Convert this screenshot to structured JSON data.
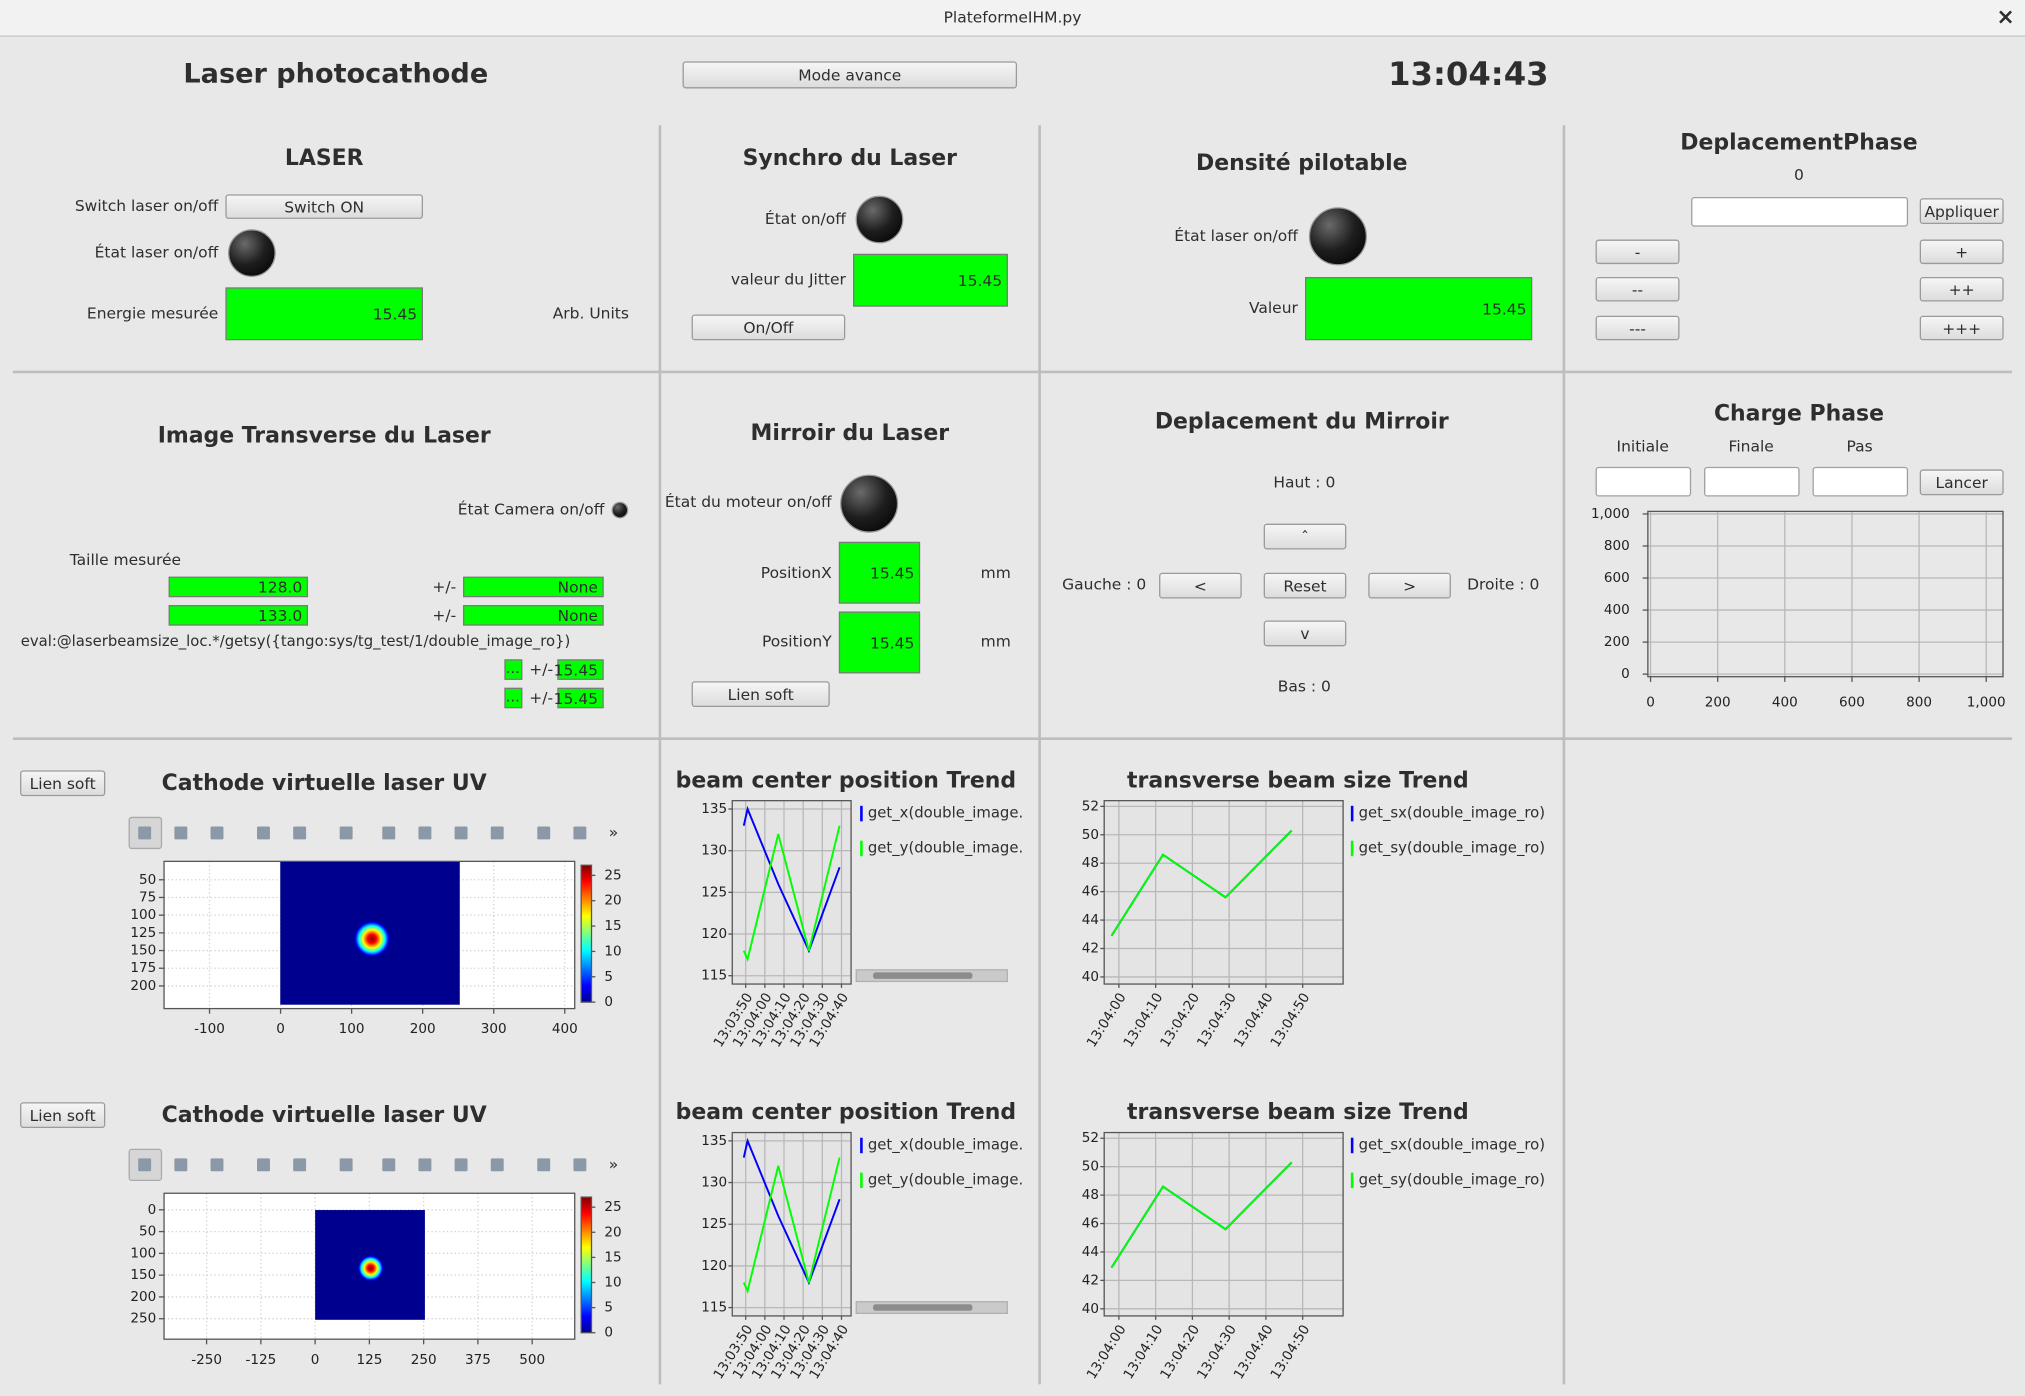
{
  "window": {
    "title": "PlateformeIHM.py",
    "close": "×"
  },
  "header": {
    "title": "Laser photocathode",
    "mode_button": "Mode avance",
    "clock": "13:04:43"
  },
  "laser": {
    "title": "LASER",
    "switch_label": "Switch laser on/off",
    "switch_button": "Switch ON",
    "state_label": "État laser on/off",
    "energy_label": "Energie mesurée",
    "energy_value": "15.45",
    "units": "Arb. Units"
  },
  "synchro": {
    "title": "Synchro  du Laser",
    "state_label": "État on/off",
    "jitter_label": "valeur du Jitter",
    "jitter_value": "15.45",
    "button": "On/Off"
  },
  "density": {
    "title": "Densité pilotable",
    "state_label": "État laser on/off",
    "value_label": "Valeur",
    "value": "15.45"
  },
  "phase": {
    "title": "DeplacementPhase",
    "value": "0",
    "apply": "Appliquer",
    "buttons": [
      "-",
      "+",
      "--",
      "++",
      "---",
      "+++"
    ]
  },
  "image": {
    "title": "Image Transverse du Laser",
    "camera_label": "État Camera on/off",
    "size_label": "Taille mesurée",
    "rows": [
      [
        "128.0",
        "+/-",
        "None"
      ],
      [
        "133.0",
        "+/-",
        "None"
      ]
    ],
    "eval": "eval:@laserbeamsize_loc.*/getsy({tango:sys/tg_test/1/double_image_ro})",
    "small": [
      [
        "...",
        "+/-",
        "15.45"
      ],
      [
        "...",
        "+/-",
        "15.45"
      ]
    ]
  },
  "mirror": {
    "title": "Mirroir du Laser",
    "motor_label": "État du moteur on/off",
    "x_label": "PositionX",
    "x_value": "15.45",
    "y_label": "PositionY",
    "y_value": "15.45",
    "unit": "mm",
    "button": "Lien soft"
  },
  "mirror_move": {
    "title": "Deplacement du Mirroir",
    "up_label": "Haut : 0",
    "up": "ˆ",
    "left_label": "Gauche : 0",
    "left": "<",
    "reset": "Reset",
    "right": ">",
    "right_label": "Droite : 0",
    "down": "v",
    "down_label": "Bas : 0"
  },
  "charge": {
    "title": "Charge Phase",
    "fields": [
      "Initiale",
      "Finale",
      "Pas"
    ],
    "button": "Lancer",
    "chart": {
      "type": "line",
      "xlim": [
        -8,
        1050
      ],
      "ylim": [
        -16,
        1016
      ],
      "grid": true,
      "xticks": [
        0,
        200,
        400,
        600,
        800,
        {
          "value": 1000,
          "label": "1,000"
        }
      ],
      "yticks": [
        0,
        200,
        400,
        600,
        800,
        {
          "value": 1000,
          "label": "1,000"
        }
      ]
    }
  },
  "rows": [
    {
      "cathode": {
        "button": "Lien soft",
        "title": "Cathode virtuelle laser UV",
        "more": "»",
        "xlim": [
          -164,
          414
        ],
        "ylim": [
          24,
          232
        ],
        "xticks": [
          -100,
          0,
          100,
          200,
          300,
          400
        ],
        "yticks": [
          50,
          75,
          100,
          125,
          150,
          175,
          200
        ],
        "clim": [
          0,
          27
        ],
        "cticks": [
          0,
          5,
          10,
          15,
          20,
          25
        ]
      },
      "center": {
        "type": "line",
        "title": "beam center position Trend",
        "xlim": [
          "13:03:43",
          "13:04:45"
        ],
        "ylim": [
          114,
          136
        ],
        "xticks": [
          "13:03:50",
          "13:04:00",
          "13:04:10",
          "13:04:20",
          "13:04:30",
          "13:04:40"
        ],
        "yticks": [
          115,
          120,
          125,
          130,
          135
        ],
        "x": [
          "13:03:49",
          "13:03:51",
          "13:04:07",
          "13:04:23",
          "13:04:39"
        ],
        "series": [
          {
            "name": "get_x(double_image.",
            "color": "#0000ff",
            "values": [
              133,
              135,
              126,
              118,
              128
            ]
          },
          {
            "name": "get_y(double_image.",
            "color": "#00ff00",
            "values": [
              118,
              117,
              132,
              118,
              133
            ]
          }
        ]
      },
      "size": {
        "type": "line",
        "title": "transverse beam size Trend",
        "xlim": [
          "13:03:56",
          "13:05:01"
        ],
        "ylim": [
          39.5,
          52.4
        ],
        "xticks": [
          "13:04:00",
          "13:04:10",
          "13:04:20",
          "13:04:30",
          "13:04:40",
          "13:04:50"
        ],
        "yticks": [
          40,
          42,
          44,
          46,
          48,
          50,
          52
        ],
        "x": [
          "13:03:58",
          "13:04:12",
          "13:04:29",
          "13:04:47"
        ],
        "series": [
          {
            "name": "get_sx(double_image_ro)",
            "color": "#0000ff",
            "values": [
              42.9,
              48.6,
              45.6,
              50.3
            ]
          },
          {
            "name": "get_sy(double_image_ro)",
            "color": "#00ff00",
            "values": [
              42.9,
              48.6,
              45.6,
              50.3
            ]
          }
        ]
      }
    },
    {
      "cathode": {
        "button": "Lien soft",
        "title": "Cathode virtuelle laser UV",
        "more": "»",
        "xlim": [
          -348,
          598
        ],
        "ylim": [
          -38,
          297
        ],
        "xticks": [
          -250,
          -125,
          0,
          125,
          250,
          375,
          500
        ],
        "yticks": [
          0,
          50,
          100,
          150,
          200,
          250
        ],
        "clim": [
          0,
          27
        ],
        "cticks": [
          0,
          5,
          10,
          15,
          20,
          25
        ]
      },
      "center": {
        "type": "line",
        "title": "beam center position Trend",
        "xlim": [
          "13:03:43",
          "13:04:45"
        ],
        "ylim": [
          114,
          136
        ],
        "xticks": [
          "13:03:50",
          "13:04:00",
          "13:04:10",
          "13:04:20",
          "13:04:30",
          "13:04:40"
        ],
        "yticks": [
          115,
          120,
          125,
          130,
          135
        ],
        "x": [
          "13:03:49",
          "13:03:51",
          "13:04:07",
          "13:04:23",
          "13:04:39"
        ],
        "series": [
          {
            "name": "get_x(double_image.",
            "color": "#0000ff",
            "values": [
              133,
              135,
              126,
              118,
              128
            ]
          },
          {
            "name": "get_y(double_image.",
            "color": "#00ff00",
            "values": [
              118,
              117,
              132,
              118,
              133
            ]
          }
        ]
      },
      "size": {
        "type": "line",
        "title": "transverse beam size Trend",
        "xlim": [
          "13:03:56",
          "13:05:01"
        ],
        "ylim": [
          39.5,
          52.4
        ],
        "xticks": [
          "13:04:00",
          "13:04:10",
          "13:04:20",
          "13:04:30",
          "13:04:40",
          "13:04:50"
        ],
        "yticks": [
          40,
          42,
          44,
          46,
          48,
          50,
          52
        ],
        "x": [
          "13:03:58",
          "13:04:12",
          "13:04:29",
          "13:04:47"
        ],
        "series": [
          {
            "name": "get_sx(double_image_ro)",
            "color": "#0000ff",
            "values": [
              42.9,
              48.6,
              45.6,
              50.3
            ]
          },
          {
            "name": "get_sy(double_image_ro)",
            "color": "#00ff00",
            "values": [
              42.9,
              48.6,
              45.6,
              50.3
            ]
          }
        ]
      }
    }
  ]
}
